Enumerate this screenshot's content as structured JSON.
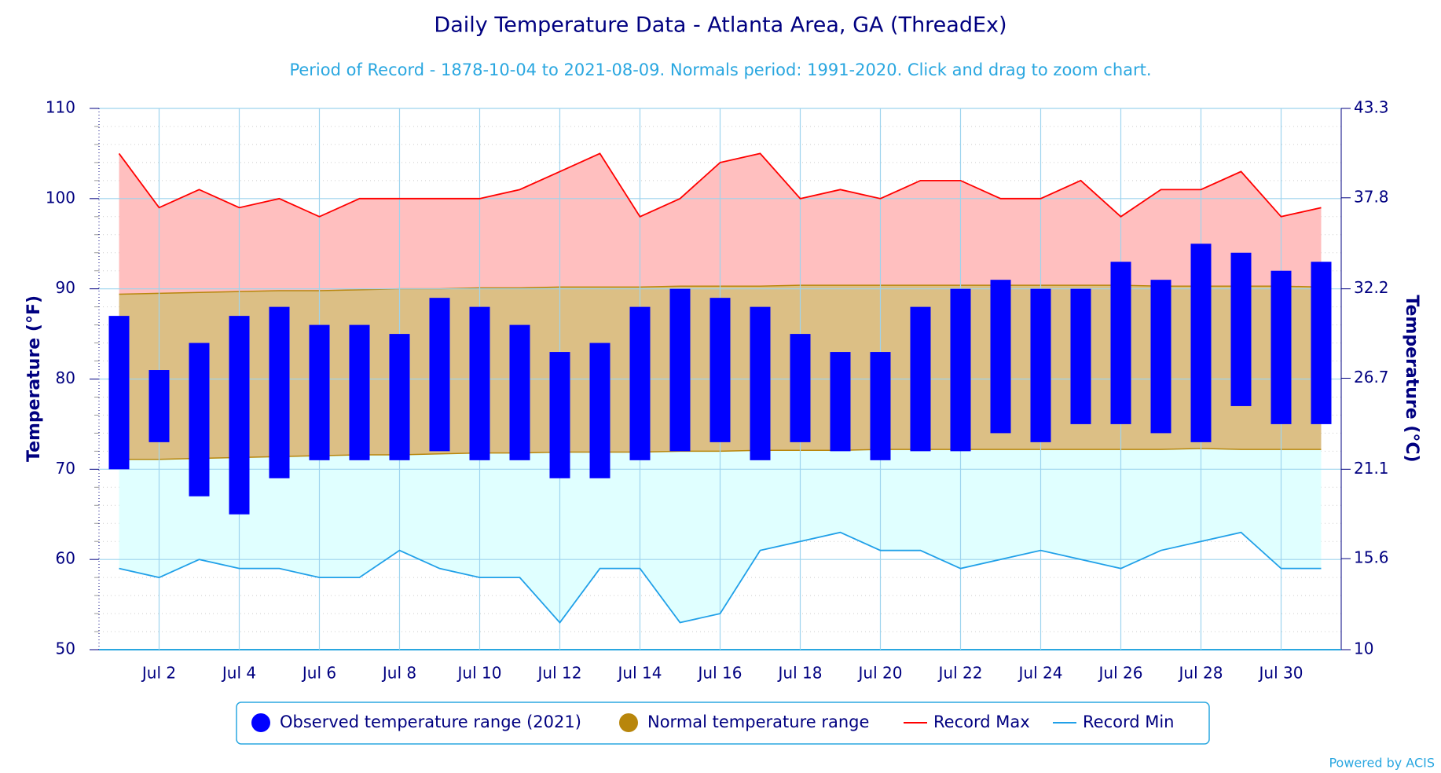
{
  "chart_data": {
    "type": "temperature-range",
    "title": "Daily Temperature Data - Atlanta Area, GA (ThreadEx)",
    "subtitle": "Period of Record - 1878-10-04 to 2021-08-09. Normals period: 1991-2020. Click and drag to zoom chart.",
    "y_label": "Temperature (°F)",
    "y2_label": "Temperature (°C)",
    "credits": "Powered by ACIS",
    "categories": [
      null,
      "Jul 2",
      null,
      "Jul 4",
      null,
      "Jul 6",
      null,
      "Jul 8",
      null,
      "Jul 10",
      null,
      "Jul 12",
      null,
      "Jul 14",
      null,
      "Jul 16",
      null,
      "Jul 18",
      null,
      "Jul 20",
      null,
      "Jul 22",
      null,
      "Jul 24",
      null,
      "Jul 26",
      null,
      "Jul 28",
      null,
      "Jul 30",
      null
    ],
    "ylim": [
      50,
      110
    ],
    "yticks": [
      50,
      60,
      70,
      80,
      90,
      100,
      110
    ],
    "y2lim": [
      10,
      43.3
    ],
    "y2ticks": [
      10,
      15.6,
      21.1,
      26.7,
      32.2,
      37.8,
      43.3
    ],
    "grid": true,
    "legend": "bottom",
    "series": [
      {
        "name": "Observed temperature range (2021)",
        "kind": "column-range",
        "color": "#0000ff",
        "low": [
          70,
          73,
          67,
          65,
          69,
          71,
          71,
          71,
          72,
          71,
          71,
          69,
          69,
          71,
          72,
          73,
          71,
          73,
          72,
          71,
          72,
          72,
          74,
          73,
          75,
          75,
          74,
          73,
          77,
          75,
          75
        ],
        "high": [
          87,
          81,
          84,
          87,
          88,
          86,
          86,
          85,
          89,
          88,
          86,
          83,
          84,
          88,
          90,
          89,
          88,
          85,
          83,
          83,
          88,
          90,
          91,
          90,
          90,
          93,
          91,
          95,
          94,
          92,
          93
        ]
      },
      {
        "name": "Normal temperature range",
        "kind": "area-range",
        "color": "#b8860b",
        "fill": "#dcbf85",
        "low": [
          71.1,
          71.1,
          71.2,
          71.3,
          71.4,
          71.5,
          71.6,
          71.6,
          71.7,
          71.8,
          71.8,
          71.9,
          71.9,
          71.9,
          72.0,
          72.0,
          72.1,
          72.1,
          72.1,
          72.2,
          72.2,
          72.2,
          72.2,
          72.2,
          72.2,
          72.2,
          72.2,
          72.3,
          72.2,
          72.2,
          72.2
        ],
        "high": [
          89.4,
          89.5,
          89.6,
          89.7,
          89.8,
          89.8,
          89.9,
          90.0,
          90.0,
          90.1,
          90.1,
          90.2,
          90.2,
          90.2,
          90.3,
          90.3,
          90.3,
          90.4,
          90.4,
          90.4,
          90.4,
          90.4,
          90.4,
          90.4,
          90.4,
          90.4,
          90.3,
          90.3,
          90.3,
          90.3,
          90.2
        ]
      },
      {
        "name": "Record Max",
        "kind": "line",
        "color": "#ff0000",
        "fill": "#ffbfbf",
        "values": [
          105,
          99,
          101,
          99,
          100,
          98,
          100,
          100,
          100,
          100,
          101,
          103,
          105,
          98,
          100,
          104,
          105,
          100,
          101,
          100,
          102,
          102,
          100,
          100,
          102,
          98,
          101,
          101,
          103,
          98,
          99
        ]
      },
      {
        "name": "Record Min",
        "kind": "line",
        "color": "#20a0e8",
        "fill": "#e0ffff",
        "values": [
          59,
          58,
          60,
          59,
          59,
          58,
          58,
          61,
          59,
          58,
          58,
          53,
          59,
          59,
          53,
          54,
          61,
          62,
          63,
          61,
          61,
          59,
          60,
          61,
          60,
          59,
          61,
          62,
          63,
          59,
          59
        ]
      }
    ]
  }
}
